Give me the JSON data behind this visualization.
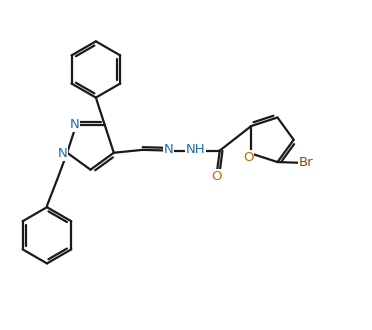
{
  "background_color": "#ffffff",
  "line_color": "#1a1a1a",
  "N_color": "#1a6bbf",
  "O_color": "#cc6600",
  "Br_color": "#8B4513",
  "line_width": 1.6,
  "font_size": 9.5,
  "fig_width": 3.72,
  "fig_height": 3.3,
  "dpi": 100,
  "xlim": [
    0,
    10
  ],
  "ylim": [
    0,
    9
  ]
}
